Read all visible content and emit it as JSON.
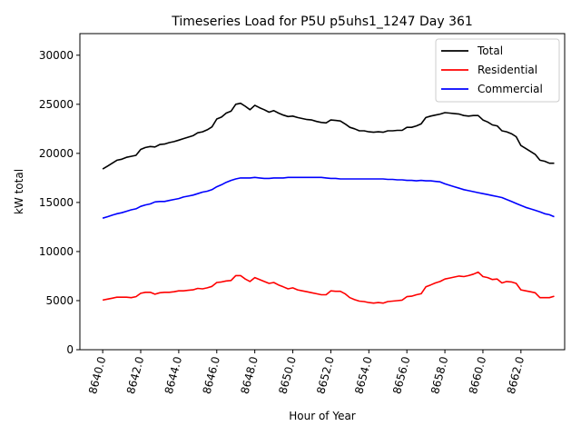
{
  "chart_data": {
    "type": "line",
    "title": "Timeseries Load for P5U p5uhs1_1247  Day 361",
    "xlabel": "Hour of Year",
    "ylabel": "kW total",
    "xlim": [
      8638.8,
      8664.3
    ],
    "ylim": [
      0,
      32200
    ],
    "x_ticks": [
      8640,
      8642,
      8644,
      8646,
      8648,
      8650,
      8652,
      8654,
      8656,
      8658,
      8660,
      8662
    ],
    "x_tick_labels": [
      "8640.0",
      "8642.0",
      "8644.0",
      "8646.0",
      "8648.0",
      "8650.0",
      "8652.0",
      "8654.0",
      "8656.0",
      "8658.0",
      "8660.0",
      "8662.0"
    ],
    "y_ticks": [
      0,
      5000,
      10000,
      15000,
      20000,
      25000,
      30000
    ],
    "y_tick_labels": [
      "0",
      "5000",
      "10000",
      "15000",
      "20000",
      "25000",
      "30000"
    ],
    "legend_position": "top-right",
    "x": [
      8640.0,
      8640.25,
      8640.5,
      8640.75,
      8641.0,
      8641.25,
      8641.5,
      8641.75,
      8642.0,
      8642.25,
      8642.5,
      8642.75,
      8643.0,
      8643.25,
      8643.5,
      8643.75,
      8644.0,
      8644.25,
      8644.5,
      8644.75,
      8645.0,
      8645.25,
      8645.5,
      8645.75,
      8646.0,
      8646.25,
      8646.5,
      8646.75,
      8647.0,
      8647.25,
      8647.5,
      8647.75,
      8648.0,
      8648.25,
      8648.5,
      8648.75,
      8649.0,
      8649.25,
      8649.5,
      8649.75,
      8650.0,
      8650.25,
      8650.5,
      8650.75,
      8651.0,
      8651.25,
      8651.5,
      8651.75,
      8652.0,
      8652.25,
      8652.5,
      8652.75,
      8653.0,
      8653.25,
      8653.5,
      8653.75,
      8654.0,
      8654.25,
      8654.5,
      8654.75,
      8655.0,
      8655.25,
      8655.5,
      8655.75,
      8656.0,
      8656.25,
      8656.5,
      8656.75,
      8657.0,
      8657.25,
      8657.5,
      8657.75,
      8658.0,
      8658.25,
      8658.5,
      8658.75,
      8659.0,
      8659.25,
      8659.5,
      8659.75,
      8660.0,
      8660.25,
      8660.5,
      8660.75,
      8661.0,
      8661.25,
      8661.5,
      8661.75,
      8662.0,
      8662.25,
      8662.5,
      8662.75,
      8663.0,
      8663.25,
      8663.5,
      8663.75
    ],
    "series": [
      {
        "name": "Total",
        "color": "#000000",
        "values": [
          18400,
          18700,
          19000,
          19300,
          19400,
          19600,
          19700,
          19800,
          20400,
          20600,
          20700,
          20650,
          20900,
          20950,
          21100,
          21200,
          21350,
          21500,
          21650,
          21800,
          22100,
          22200,
          22400,
          22700,
          23500,
          23700,
          24100,
          24300,
          25000,
          25100,
          24800,
          24450,
          24900,
          24650,
          24450,
          24200,
          24350,
          24100,
          23900,
          23750,
          23800,
          23650,
          23550,
          23450,
          23400,
          23250,
          23150,
          23100,
          23400,
          23350,
          23300,
          23000,
          22650,
          22500,
          22300,
          22300,
          22200,
          22150,
          22200,
          22150,
          22300,
          22300,
          22350,
          22350,
          22650,
          22650,
          22800,
          23000,
          23650,
          23800,
          23900,
          24000,
          24150,
          24100,
          24050,
          24000,
          23850,
          23800,
          23850,
          23850,
          23400,
          23200,
          22900,
          22800,
          22300,
          22200,
          22000,
          21700,
          20800,
          20500,
          20200,
          19900,
          19300,
          19200,
          19000,
          19000
        ]
      },
      {
        "name": "Residential",
        "color": "#ff0000",
        "values": [
          5050,
          5150,
          5250,
          5350,
          5350,
          5350,
          5300,
          5400,
          5750,
          5850,
          5850,
          5650,
          5800,
          5850,
          5850,
          5900,
          6000,
          6000,
          6050,
          6100,
          6250,
          6200,
          6300,
          6450,
          6850,
          6900,
          7000,
          7050,
          7550,
          7550,
          7200,
          6950,
          7350,
          7150,
          6950,
          6750,
          6850,
          6600,
          6400,
          6200,
          6300,
          6100,
          6000,
          5900,
          5800,
          5700,
          5600,
          5600,
          6000,
          5950,
          5950,
          5700,
          5300,
          5100,
          4950,
          4900,
          4800,
          4750,
          4800,
          4750,
          4900,
          4950,
          5000,
          5050,
          5400,
          5450,
          5600,
          5700,
          6400,
          6600,
          6800,
          6950,
          7200,
          7300,
          7400,
          7500,
          7450,
          7550,
          7700,
          7900,
          7450,
          7350,
          7150,
          7200,
          6800,
          6950,
          6900,
          6750,
          6100,
          6000,
          5900,
          5800,
          5300,
          5300,
          5300,
          5450
        ]
      },
      {
        "name": "Commercial",
        "color": "#0000ff",
        "values": [
          13400,
          13550,
          13700,
          13850,
          13950,
          14100,
          14250,
          14350,
          14600,
          14750,
          14850,
          15050,
          15100,
          15100,
          15200,
          15300,
          15400,
          15550,
          15650,
          15750,
          15900,
          16050,
          16150,
          16300,
          16600,
          16800,
          17050,
          17250,
          17400,
          17500,
          17500,
          17500,
          17550,
          17500,
          17450,
          17450,
          17500,
          17500,
          17500,
          17550,
          17550,
          17550,
          17550,
          17550,
          17550,
          17550,
          17550,
          17500,
          17450,
          17450,
          17400,
          17400,
          17400,
          17400,
          17400,
          17400,
          17400,
          17400,
          17400,
          17400,
          17350,
          17350,
          17300,
          17300,
          17250,
          17250,
          17200,
          17250,
          17200,
          17200,
          17150,
          17100,
          16900,
          16750,
          16600,
          16450,
          16300,
          16200,
          16100,
          16000,
          15900,
          15800,
          15700,
          15600,
          15500,
          15300,
          15100,
          14900,
          14700,
          14500,
          14350,
          14200,
          14050,
          13850,
          13750,
          13550
        ]
      }
    ]
  }
}
